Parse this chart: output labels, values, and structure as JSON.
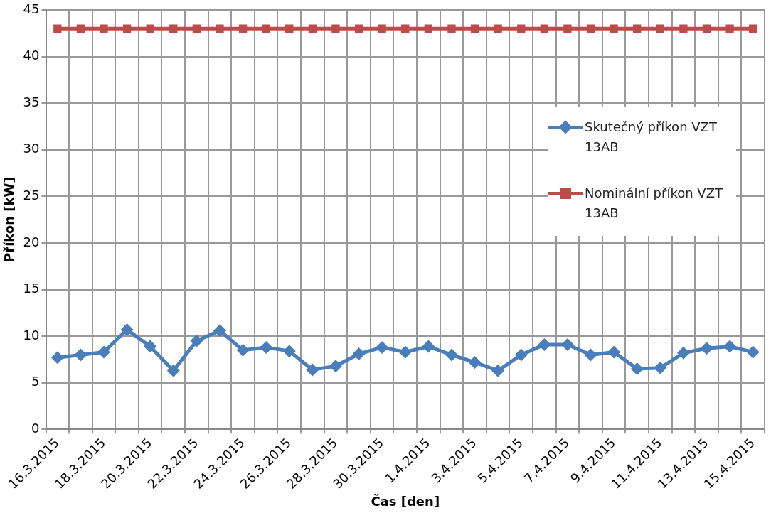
{
  "chart_data": {
    "type": "line",
    "xlabel": "Čas [den]",
    "ylabel": "Příkon [kW]",
    "categories": [
      "16.3.2015",
      null,
      "18.3.2015",
      null,
      "20.3.2015",
      null,
      "22.3.2015",
      null,
      "24.3.2015",
      null,
      "26.3.2015",
      null,
      "28.3.2015",
      null,
      "30.3.2015",
      null,
      "1.4.2015",
      null,
      "3.4.2015",
      null,
      "5.4.2015",
      null,
      "7.4.2015",
      null,
      "9.4.2015",
      null,
      "11.4.2015",
      null,
      "13.4.2015",
      null,
      "15.4.2015"
    ],
    "series": [
      {
        "name": "Skutečný příkon VZT 13AB",
        "color": "#4a7ebb",
        "marker": "diamond",
        "values": [
          7.7,
          8.0,
          8.3,
          10.7,
          8.9,
          6.3,
          9.5,
          10.6,
          8.5,
          8.8,
          8.4,
          6.4,
          6.8,
          8.1,
          8.8,
          8.3,
          8.9,
          8.0,
          7.2,
          6.3,
          8.0,
          9.1,
          9.1,
          8.0,
          8.3,
          6.5,
          6.6,
          8.2,
          8.7,
          8.9,
          8.3
        ]
      },
      {
        "name": "Nominální příkon VZT 13AB",
        "color": "#be4b48",
        "marker": "square",
        "values": [
          43,
          43,
          43,
          43,
          43,
          43,
          43,
          43,
          43,
          43,
          43,
          43,
          43,
          43,
          43,
          43,
          43,
          43,
          43,
          43,
          43,
          43,
          43,
          43,
          43,
          43,
          43,
          43,
          43,
          43,
          43
        ]
      }
    ],
    "ylim": [
      0,
      45
    ],
    "yticks": [
      0,
      5,
      10,
      15,
      20,
      25,
      30,
      35,
      40,
      45
    ],
    "grid": true,
    "legend": "right",
    "line_style": "solid"
  }
}
